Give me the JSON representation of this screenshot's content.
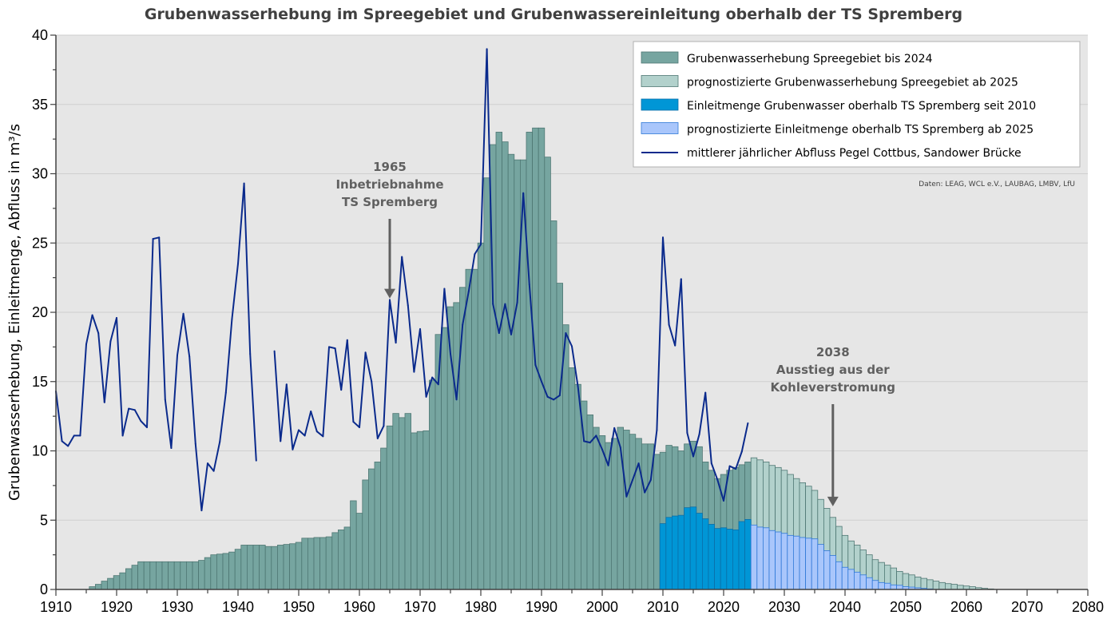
{
  "chart_data": {
    "type": "bar",
    "title": "Grubenwasserhebung im Spreegebiet und Grubenwassereinleitung oberhalb der TS Spremberg",
    "xlabel": "",
    "ylabel": "Grubenwasserhebung, Einleitmenge, Abfluss in m³/s",
    "xlim": [
      1910,
      2080
    ],
    "ylim": [
      0,
      40
    ],
    "x_ticks": [
      1910,
      1920,
      1930,
      1940,
      1950,
      1960,
      1970,
      1980,
      1990,
      2000,
      2010,
      2020,
      2030,
      2040,
      2050,
      2060,
      2070,
      2080
    ],
    "y_ticks": [
      0,
      5,
      10,
      15,
      20,
      25,
      30,
      35,
      40
    ],
    "grid": true,
    "legend_position": "top-right",
    "source_note": "Daten: LEAG, WCL e.V., LAUBAG, LMBV, LfU",
    "colors": {
      "hist_green": "#76a5a0",
      "hist_green_edge": "#4e7773",
      "fc_green": "#b2d1cc",
      "fc_green_edge": "#4e7773",
      "hist_blue": "#0096d6",
      "hist_blue_edge": "#0a6fa8",
      "fc_blue": "#a9c6fb",
      "fc_blue_edge": "#2f78d8",
      "line": "#0a2a8c",
      "plot_bg": "#e6e6e6",
      "annotation": "#606060"
    },
    "series": [
      {
        "name": "Grubenwasserhebung Spreegebiet bis 2024",
        "kind": "bar",
        "start_year": 1916,
        "values": [
          0.2,
          0.37,
          0.6,
          0.8,
          1.0,
          1.2,
          1.5,
          1.75,
          2.0,
          2.0,
          2.0,
          2.0,
          2.0,
          2.0,
          2.0,
          2.0,
          2.0,
          2.0,
          2.1,
          2.3,
          2.5,
          2.55,
          2.6,
          2.7,
          2.9,
          3.2,
          3.2,
          3.2,
          3.2,
          3.1,
          3.1,
          3.2,
          3.25,
          3.3,
          3.4,
          3.7,
          3.7,
          3.75,
          3.75,
          3.8,
          4.1,
          4.3,
          4.5,
          6.4,
          5.5,
          7.9,
          8.7,
          9.2,
          10.2,
          11.8,
          12.7,
          12.4,
          12.7,
          11.3,
          11.4,
          11.45,
          15.1,
          18.4,
          18.9,
          20.4,
          20.7,
          21.8,
          23.1,
          23.1,
          25.0,
          29.7,
          32.1,
          33.0,
          32.3,
          31.4,
          31.0,
          31.0,
          33.0,
          33.3,
          33.3,
          31.2,
          26.6,
          22.1,
          19.1,
          16.0,
          14.8,
          13.6,
          12.6,
          11.7,
          11.1,
          10.6,
          10.9,
          11.7,
          11.5,
          11.2,
          10.9,
          10.5,
          10.5,
          9.75,
          9.9,
          10.4,
          10.3,
          10.0,
          10.5,
          10.7,
          10.3,
          9.2,
          8.6,
          8.0,
          8.3,
          8.6,
          8.8,
          9.0,
          9.2
        ]
      },
      {
        "name": "prognostizierte Grubenwasserhebung Spreegebiet ab 2025",
        "kind": "bar",
        "start_year": 2025,
        "values": [
          9.5,
          9.35,
          9.2,
          8.95,
          8.8,
          8.6,
          8.3,
          8.0,
          7.7,
          7.45,
          7.15,
          6.5,
          5.85,
          5.2,
          4.55,
          3.9,
          3.5,
          3.2,
          2.85,
          2.5,
          2.15,
          1.95,
          1.75,
          1.55,
          1.3,
          1.15,
          1.05,
          0.9,
          0.8,
          0.7,
          0.6,
          0.5,
          0.42,
          0.37,
          0.3,
          0.25,
          0.2,
          0.13,
          0.08,
          0.04
        ]
      },
      {
        "name": "Einleitmenge Grubenwasser oberhalb TS Spremberg seit 2010",
        "kind": "bar",
        "start_year": 2010,
        "values": [
          4.75,
          5.2,
          5.3,
          5.35,
          5.9,
          5.95,
          5.5,
          5.1,
          4.7,
          4.4,
          4.45,
          4.35,
          4.3,
          4.9,
          5.05
        ]
      },
      {
        "name": "prognostizierte Einleitmenge oberhalb TS Spremberg ab 2025",
        "kind": "bar",
        "start_year": 2025,
        "values": [
          4.65,
          4.5,
          4.45,
          4.25,
          4.15,
          4.05,
          3.9,
          3.85,
          3.75,
          3.7,
          3.65,
          3.25,
          2.8,
          2.45,
          2.0,
          1.6,
          1.45,
          1.25,
          1.05,
          0.85,
          0.65,
          0.5,
          0.45,
          0.33,
          0.3,
          0.2,
          0.17,
          0.12,
          0.08,
          0.04
        ]
      },
      {
        "name": "mittlerer jährlicher Abfluss Pegel Cottbus, Sandower Brücke",
        "kind": "line",
        "start_year": 1910,
        "values": [
          14.3,
          10.7,
          10.35,
          11.1,
          11.1,
          17.7,
          19.8,
          18.5,
          13.5,
          17.9,
          19.6,
          11.1,
          13.05,
          12.95,
          12.15,
          11.7,
          25.3,
          25.4,
          13.7,
          10.2,
          16.9,
          19.9,
          16.8,
          10.5,
          5.7,
          9.1,
          8.55,
          10.65,
          14.2,
          19.5,
          23.5,
          29.3,
          17.0,
          9.3,
          null,
          null,
          17.2,
          10.7,
          14.8,
          10.1,
          11.5,
          11.1,
          12.85,
          11.4,
          11.05,
          17.5,
          17.4,
          14.4,
          18.0,
          12.1,
          11.7,
          17.1,
          15.0,
          10.9,
          11.8,
          20.9,
          17.8,
          24.0,
          20.5,
          15.7,
          18.8,
          13.9,
          15.3,
          14.8,
          21.7,
          17.0,
          13.7,
          19.1,
          21.5,
          24.2,
          24.9,
          39.0,
          20.6,
          18.5,
          20.6,
          18.4,
          20.7,
          28.6,
          22.0,
          16.2,
          15.0,
          13.9,
          13.7,
          14.0,
          18.5,
          17.55,
          14.65,
          10.7,
          10.6,
          11.1,
          10.1,
          8.95,
          11.65,
          10.25,
          6.7,
          7.9,
          9.1,
          7.0,
          7.9,
          11.5,
          25.4,
          19.1,
          17.6,
          22.4,
          11.3,
          9.6,
          11.2,
          14.2,
          9.1,
          7.9,
          6.4,
          8.9,
          8.7,
          9.95,
          12.0
        ]
      }
    ],
    "annotations": [
      {
        "year": 1965,
        "lines": [
          "1965",
          "Inbetriebnahme",
          "TS Spremberg"
        ],
        "arrow_to_value": 21
      },
      {
        "year": 2038,
        "lines": [
          "2038",
          "Ausstieg aus der",
          "Kohleverstromung"
        ],
        "arrow_to_value": 6
      }
    ]
  }
}
